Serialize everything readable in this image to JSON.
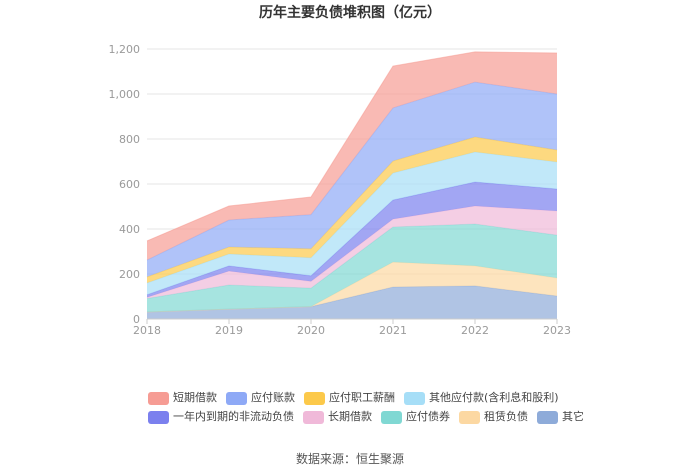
{
  "chart_data": {
    "type": "area",
    "stacked": true,
    "title": "历年主要负债堆积图（亿元）",
    "categories": [
      "2018",
      "2019",
      "2020",
      "2021",
      "2022",
      "2023"
    ],
    "ylim": [
      0,
      1200
    ],
    "yticks": [
      0,
      200,
      400,
      600,
      800,
      1000,
      1200
    ],
    "ytick_labels": [
      "0",
      "200",
      "400",
      "600",
      "800",
      "1,000",
      "1,200"
    ],
    "legend_position": "bottom",
    "stack_order": "last series at bottom",
    "series": [
      {
        "name": "短期借款",
        "color": "#f69c94",
        "values": [
          85,
          62,
          78,
          186,
          134,
          182
        ]
      },
      {
        "name": "应付账款",
        "color": "#8ea9f6",
        "values": [
          75,
          120,
          152,
          236,
          244,
          249
        ]
      },
      {
        "name": "应付职工薪酬",
        "color": "#fcc94a",
        "values": [
          27,
          31,
          40,
          53,
          67,
          53
        ]
      },
      {
        "name": "其他应付款(含利息和股利)",
        "color": "#a6def7",
        "values": [
          52,
          53,
          80,
          120,
          133,
          120
        ]
      },
      {
        "name": "一年内到期的非流动负债",
        "color": "#7b80ee",
        "values": [
          12,
          23,
          25,
          85,
          107,
          98
        ]
      },
      {
        "name": "长期借款",
        "color": "#f0b9d9",
        "values": [
          5,
          62,
          30,
          35,
          80,
          107
        ]
      },
      {
        "name": "应付债券",
        "color": "#80d8d3",
        "values": [
          60,
          107,
          82,
          156,
          186,
          191
        ]
      },
      {
        "name": "租赁负债",
        "color": "#fcd8a2",
        "values": [
          0,
          0,
          0,
          111,
          89,
          80
        ]
      },
      {
        "name": "其它",
        "color": "#8eabd9",
        "values": [
          31,
          44,
          55,
          142,
          147,
          102
        ]
      }
    ]
  },
  "footer": {
    "source": "数据来源：恒生聚源"
  }
}
